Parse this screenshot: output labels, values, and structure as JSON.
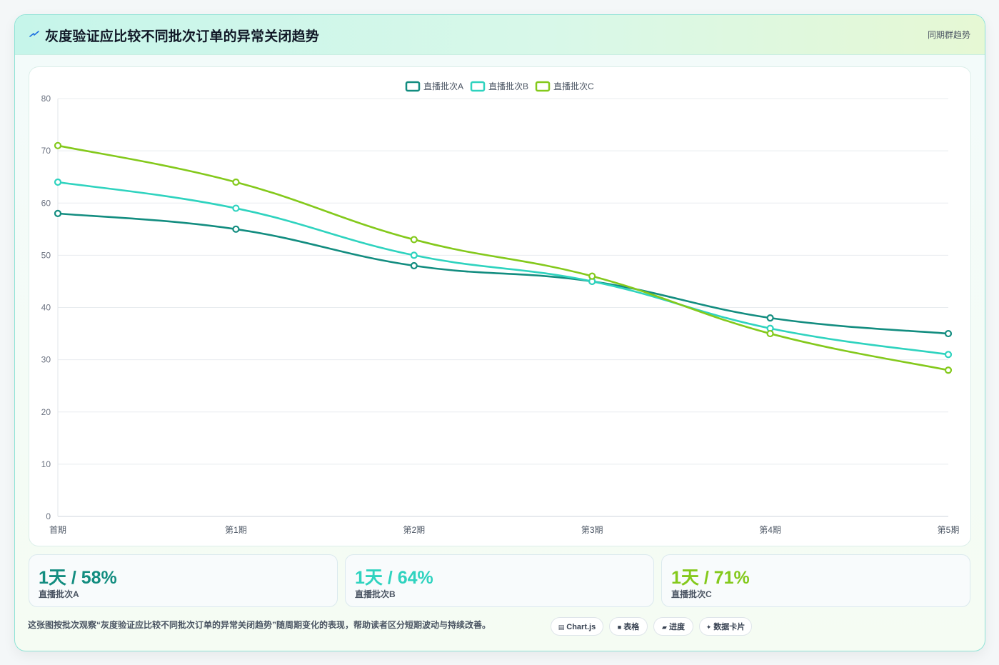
{
  "header": {
    "title": "灰度验证应比较不同批次订单的异常关闭趋势",
    "tag": "同期群趋势",
    "icon": "spark-icon"
  },
  "chart_data": {
    "type": "line",
    "categories": [
      "首期",
      "第1期",
      "第2期",
      "第3期",
      "第4期",
      "第5期"
    ],
    "series": [
      {
        "name": "直播批次A",
        "color": "#138d80",
        "values": [
          58,
          55,
          48,
          45,
          38,
          35
        ]
      },
      {
        "name": "直播批次B",
        "color": "#2fd3bf",
        "values": [
          64,
          59,
          50,
          45,
          36,
          31
        ]
      },
      {
        "name": "直播批次C",
        "color": "#84c91c",
        "values": [
          71,
          64,
          53,
          46,
          35,
          28
        ]
      }
    ],
    "ylim": [
      0,
      80
    ],
    "yticks": [
      0,
      10,
      20,
      30,
      40,
      50,
      60,
      70,
      80
    ],
    "grid": true,
    "legend": "top-center"
  },
  "stats": [
    {
      "value": "1天 / 58%",
      "label": "直播批次A",
      "color": "#138d80"
    },
    {
      "value": "1天 / 64%",
      "label": "直播批次B",
      "color": "#2fd3bf"
    },
    {
      "value": "1天 / 71%",
      "label": "直播批次C",
      "color": "#84c91c"
    }
  ],
  "footer": {
    "note": "这张图按批次观察“灰度验证应比较不同批次订单的异常关闭趋势”随周期变化的表现，帮助读者区分短期波动与持续改善。",
    "pills": [
      {
        "label": "Chart.js",
        "icon": "chart-icon",
        "glyph": "▤"
      },
      {
        "label": "表格",
        "icon": "table-icon",
        "glyph": "■"
      },
      {
        "label": "进度",
        "icon": "progress-icon",
        "glyph": "▰"
      },
      {
        "label": "数据卡片",
        "icon": "card-icon",
        "glyph": "✦"
      }
    ]
  }
}
